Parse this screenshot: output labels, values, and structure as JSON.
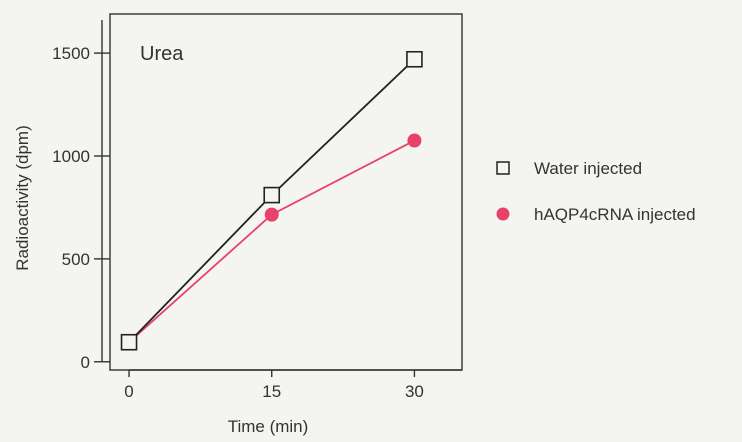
{
  "chart_data": {
    "type": "line",
    "title": "",
    "panel_label": "Urea",
    "xlabel": "Time (min)",
    "ylabel": "Radioactivity (dpm)",
    "x": [
      0,
      15,
      30
    ],
    "x_ticks": [
      "0",
      "15",
      "30"
    ],
    "y_ticks": [
      "0",
      "500",
      "1000",
      "1500"
    ],
    "xlim": [
      -2,
      35
    ],
    "ylim": [
      -40,
      1690
    ],
    "series": [
      {
        "name": "Water injected",
        "marker": "open-square",
        "color": "#222222",
        "values": [
          95,
          810,
          1470
        ]
      },
      {
        "name": "hAQP4cRNA injected",
        "marker": "filled-circle",
        "color": "#e8416a",
        "values": [
          95,
          715,
          1075
        ]
      }
    ],
    "legend_position": "right",
    "grid": false
  }
}
